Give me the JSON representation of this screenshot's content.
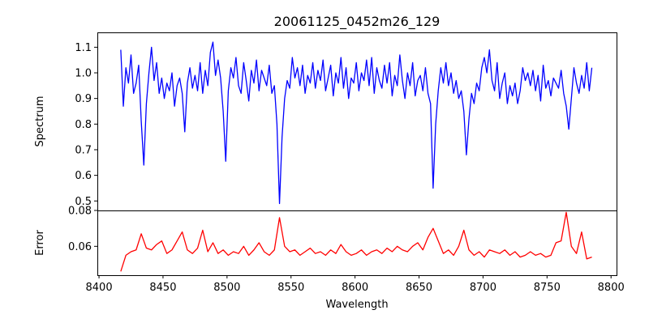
{
  "chart_data": [
    {
      "type": "line",
      "title": "20061125_0452m26_129",
      "xlabel": "",
      "ylabel": "Spectrum",
      "xlim": [
        8398.7,
        8804.3
      ],
      "ylim": [
        0.463,
        1.158
      ],
      "yticks": [
        0.5,
        0.6,
        0.7,
        0.8,
        0.9,
        1.0,
        1.1
      ],
      "ytick_labels": [
        "0.5",
        "0.6",
        "0.7",
        "0.8",
        "0.9",
        "1.0",
        "1.1"
      ],
      "color": "#0000ff",
      "x_start": 8417,
      "x_step": 2,
      "values": [
        1.09,
        0.87,
        1.02,
        0.96,
        1.07,
        0.92,
        0.96,
        1.03,
        0.81,
        0.64,
        0.88,
        1.0,
        1.1,
        0.97,
        1.04,
        0.92,
        0.98,
        0.9,
        0.96,
        0.93,
        1.0,
        0.87,
        0.95,
        0.98,
        0.92,
        0.77,
        0.96,
        1.02,
        0.94,
        0.99,
        0.93,
        1.04,
        0.92,
        1.01,
        0.95,
        1.08,
        1.12,
        0.99,
        1.05,
        0.98,
        0.85,
        0.655,
        0.93,
        1.02,
        0.98,
        1.06,
        0.95,
        0.92,
        1.04,
        0.97,
        0.89,
        1.01,
        0.96,
        1.05,
        0.93,
        1.01,
        0.98,
        0.95,
        1.03,
        0.92,
        0.95,
        0.8,
        0.49,
        0.75,
        0.9,
        0.97,
        0.94,
        1.06,
        0.98,
        1.02,
        0.95,
        1.03,
        0.92,
        0.99,
        0.96,
        1.04,
        0.94,
        1.01,
        0.97,
        1.05,
        0.93,
        0.98,
        1.03,
        0.91,
        1.0,
        0.96,
        1.06,
        0.94,
        1.02,
        0.9,
        0.98,
        0.96,
        1.04,
        0.93,
        1.0,
        0.97,
        1.05,
        0.95,
        1.06,
        0.92,
        1.02,
        0.97,
        0.94,
        1.03,
        0.96,
        1.04,
        0.91,
        0.99,
        0.95,
        1.07,
        0.97,
        0.9,
        1.0,
        0.95,
        1.04,
        0.91,
        0.97,
        0.99,
        0.93,
        1.02,
        0.92,
        0.88,
        0.55,
        0.8,
        0.93,
        1.02,
        0.96,
        1.04,
        0.95,
        1.0,
        0.92,
        0.97,
        0.9,
        0.93,
        0.85,
        0.68,
        0.82,
        0.92,
        0.88,
        0.96,
        0.93,
        1.02,
        1.06,
        1.0,
        1.09,
        0.97,
        0.93,
        1.04,
        0.9,
        0.96,
        1.0,
        0.88,
        0.95,
        0.91,
        0.96,
        0.88,
        0.93,
        1.02,
        0.97,
        1.0,
        0.95,
        1.01,
        0.93,
        0.99,
        0.89,
        1.03,
        0.94,
        0.97,
        0.91,
        0.98,
        0.96,
        0.94,
        1.01,
        0.92,
        0.87,
        0.78,
        0.9,
        1.02,
        0.96,
        0.92,
        0.99,
        0.94,
        1.04,
        0.93,
        1.02
      ]
    },
    {
      "type": "line",
      "title": "",
      "xlabel": "Wavelength",
      "ylabel": "Error",
      "xlim": [
        8398.7,
        8804.3
      ],
      "ylim": [
        0.0439,
        0.08
      ],
      "xticks": [
        8400,
        8450,
        8500,
        8550,
        8600,
        8650,
        8700,
        8750,
        8800
      ],
      "xtick_labels": [
        "8400",
        "8450",
        "8500",
        "8550",
        "8600",
        "8650",
        "8700",
        "8750",
        "8800"
      ],
      "yticks": [
        0.06,
        0.08
      ],
      "ytick_labels": [
        "0.06",
        "0.08"
      ],
      "color": "#ff0000",
      "x_start": 8417,
      "x_step": 4,
      "values": [
        0.046,
        0.055,
        0.057,
        0.058,
        0.067,
        0.059,
        0.058,
        0.061,
        0.063,
        0.056,
        0.058,
        0.063,
        0.068,
        0.058,
        0.056,
        0.059,
        0.069,
        0.057,
        0.062,
        0.056,
        0.058,
        0.055,
        0.057,
        0.056,
        0.06,
        0.055,
        0.058,
        0.062,
        0.057,
        0.055,
        0.058,
        0.076,
        0.06,
        0.057,
        0.058,
        0.055,
        0.057,
        0.059,
        0.056,
        0.057,
        0.055,
        0.058,
        0.056,
        0.061,
        0.057,
        0.055,
        0.056,
        0.058,
        0.055,
        0.057,
        0.058,
        0.056,
        0.059,
        0.057,
        0.06,
        0.058,
        0.057,
        0.06,
        0.062,
        0.058,
        0.065,
        0.07,
        0.063,
        0.056,
        0.058,
        0.055,
        0.06,
        0.069,
        0.058,
        0.055,
        0.057,
        0.054,
        0.058,
        0.057,
        0.056,
        0.058,
        0.055,
        0.057,
        0.054,
        0.055,
        0.057,
        0.055,
        0.056,
        0.054,
        0.055,
        0.062,
        0.063,
        0.079,
        0.06,
        0.056,
        0.068,
        0.053,
        0.054
      ]
    }
  ]
}
